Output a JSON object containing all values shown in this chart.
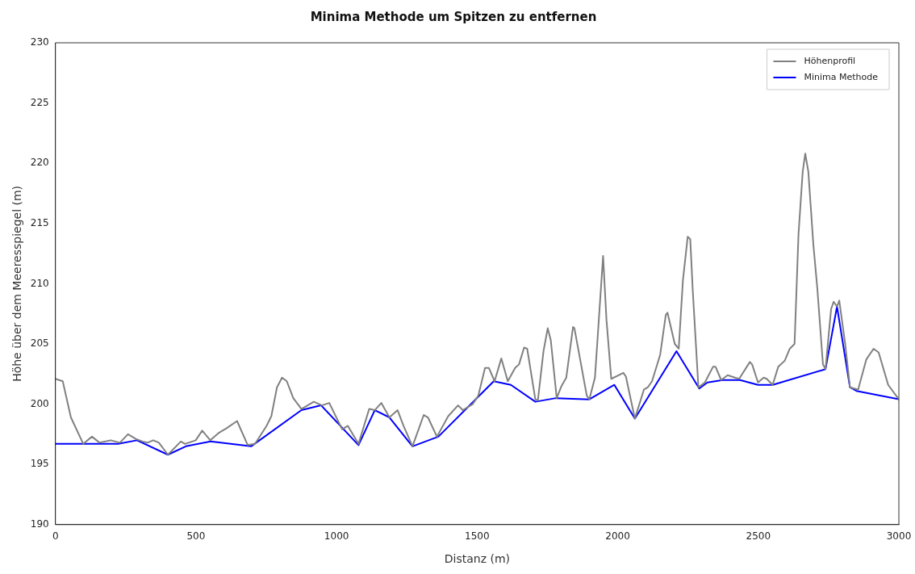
{
  "chart_data": {
    "type": "line",
    "title": "Minima Methode um Spitzen zu entfernen",
    "xlabel": "Distanz (m)",
    "ylabel": "Höhe über dem Meeresspiegel (m)",
    "xlim": [
      0,
      3000
    ],
    "xticks": [
      0,
      500,
      1000,
      1500,
      2000,
      2500,
      3000
    ],
    "ylim": [
      190,
      230
    ],
    "yticks": [
      190,
      195,
      200,
      205,
      210,
      215,
      220,
      225,
      230
    ],
    "grid": false,
    "legend": "top right",
    "marker": "none",
    "line_style": "solid",
    "series": [
      {
        "name": "Höhenprofil",
        "color": "#808080",
        "x": [
          0,
          26,
          55,
          99,
          130,
          157,
          197,
          229,
          258,
          287,
          310,
          327,
          348,
          368,
          400,
          446,
          461,
          499,
          522,
          551,
          580,
          609,
          646,
          684,
          710,
          751,
          768,
          788,
          806,
          823,
          846,
          875,
          919,
          948,
          974,
          1020,
          1040,
          1078,
          1116,
          1136,
          1159,
          1188,
          1217,
          1238,
          1270,
          1310,
          1325,
          1357,
          1397,
          1432,
          1449,
          1484,
          1504,
          1528,
          1542,
          1562,
          1586,
          1609,
          1635,
          1649,
          1667,
          1678,
          1707,
          1716,
          1736,
          1751,
          1762,
          1783,
          1800,
          1817,
          1841,
          1846,
          1890,
          1899,
          1919,
          1948,
          1960,
          1977,
          2020,
          2029,
          2061,
          2093,
          2107,
          2122,
          2151,
          2171,
          2177,
          2203,
          2217,
          2232,
          2249,
          2258,
          2267,
          2287,
          2310,
          2339,
          2348,
          2368,
          2391,
          2417,
          2432,
          2470,
          2478,
          2499,
          2519,
          2530,
          2551,
          2571,
          2594,
          2612,
          2629,
          2643,
          2658,
          2667,
          2678,
          2696,
          2710,
          2730,
          2739,
          2759,
          2768,
          2780,
          2788,
          2809,
          2826,
          2841,
          2855,
          2884,
          2910,
          2928,
          2962,
          3000
        ],
        "values": [
          202.1,
          201.9,
          198.9,
          196.7,
          197.3,
          196.8,
          197.0,
          196.8,
          197.5,
          197.1,
          196.9,
          196.8,
          197.0,
          196.8,
          195.8,
          196.9,
          196.7,
          197.0,
          197.8,
          197.0,
          197.6,
          198.0,
          198.6,
          196.6,
          196.7,
          198.2,
          199.0,
          201.4,
          202.2,
          201.9,
          200.5,
          199.6,
          200.2,
          199.9,
          200.1,
          197.9,
          198.2,
          196.7,
          199.6,
          199.5,
          200.1,
          198.9,
          199.5,
          198.2,
          196.5,
          199.1,
          198.9,
          197.3,
          199.0,
          199.9,
          199.5,
          200.0,
          200.7,
          203.0,
          203.0,
          201.9,
          203.8,
          201.9,
          203.0,
          203.3,
          204.7,
          204.6,
          200.4,
          200.3,
          204.4,
          206.3,
          205.3,
          200.5,
          201.5,
          202.2,
          206.4,
          206.3,
          200.7,
          200.4,
          202.2,
          212.3,
          207.0,
          202.1,
          202.6,
          202.3,
          198.8,
          201.2,
          201.4,
          201.9,
          204.1,
          207.4,
          207.6,
          205.0,
          204.6,
          210.3,
          213.9,
          213.7,
          209.4,
          201.4,
          201.8,
          203.1,
          203.1,
          202.0,
          202.4,
          202.2,
          202.1,
          203.5,
          203.3,
          201.8,
          202.2,
          202.1,
          201.6,
          203.1,
          203.6,
          204.6,
          205.0,
          214.1,
          219.3,
          220.8,
          219.3,
          213.2,
          209.6,
          203.3,
          202.9,
          207.9,
          208.5,
          208.1,
          208.6,
          205.0,
          201.4,
          201.3,
          201.2,
          203.7,
          204.6,
          204.3,
          201.6,
          200.4
        ]
      },
      {
        "name": "Minima Methode",
        "color": "#0000ff",
        "x": [
          0,
          223,
          290,
          400,
          464,
          551,
          696,
          875,
          945,
          1078,
          1136,
          1188,
          1270,
          1362,
          1559,
          1620,
          1707,
          1780,
          1899,
          1988,
          2061,
          2209,
          2290,
          2319,
          2374,
          2435,
          2499,
          2551,
          2739,
          2780,
          2826,
          2849,
          3000
        ],
        "values": [
          196.7,
          196.7,
          197.0,
          195.8,
          196.5,
          196.9,
          196.5,
          199.5,
          199.9,
          196.6,
          199.5,
          198.9,
          196.5,
          197.3,
          201.9,
          201.6,
          200.2,
          200.5,
          200.4,
          201.6,
          198.8,
          204.4,
          201.3,
          201.8,
          202.0,
          202.0,
          201.6,
          201.6,
          202.9,
          208.1,
          201.4,
          201.1,
          200.4
        ]
      }
    ]
  }
}
